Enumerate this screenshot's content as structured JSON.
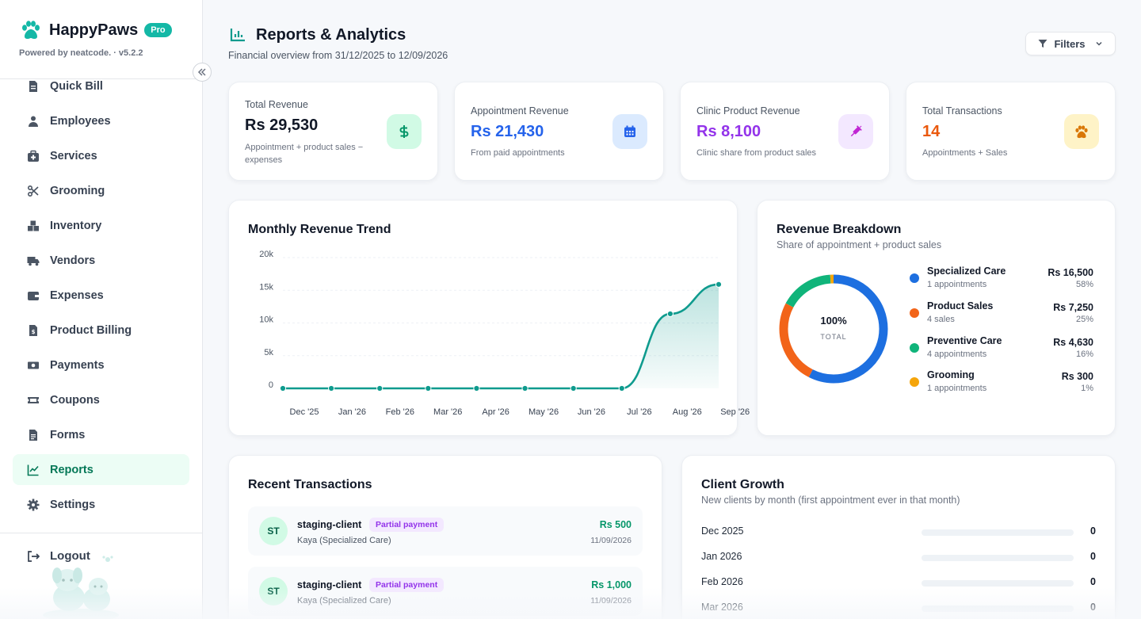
{
  "brand": {
    "name": "HappyPaws",
    "badge": "Pro",
    "powered_by": "Powered by neatcode. · v5.2.2"
  },
  "nav": [
    {
      "label": "Quick Bill",
      "icon": "receipt-icon"
    },
    {
      "label": "Employees",
      "icon": "user-icon"
    },
    {
      "label": "Services",
      "icon": "medical-kit-icon"
    },
    {
      "label": "Grooming",
      "icon": "scissors-icon"
    },
    {
      "label": "Inventory",
      "icon": "boxes-icon"
    },
    {
      "label": "Vendors",
      "icon": "truck-icon"
    },
    {
      "label": "Expenses",
      "icon": "wallet-icon"
    },
    {
      "label": "Product Billing",
      "icon": "invoice-icon"
    },
    {
      "label": "Payments",
      "icon": "money-icon"
    },
    {
      "label": "Coupons",
      "icon": "ticket-icon"
    },
    {
      "label": "Forms",
      "icon": "form-icon"
    },
    {
      "label": "Reports",
      "icon": "chart-line-icon",
      "active": true
    },
    {
      "label": "Settings",
      "icon": "gear-icon"
    }
  ],
  "logout_label": "Logout",
  "header": {
    "title": "Reports & Analytics",
    "subtitle": "Financial overview from 31/12/2025 to 12/09/2026",
    "filters_label": "Filters"
  },
  "stats": [
    {
      "label": "Total Revenue",
      "value": "Rs 29,530",
      "desc": "Appointment + product sales − expenses",
      "color": "#111827",
      "icon": "dollar-icon"
    },
    {
      "label": "Appointment Revenue",
      "value": "Rs 21,430",
      "desc": "From paid appointments",
      "color": "#2563eb",
      "icon": "calendar-icon"
    },
    {
      "label": "Clinic Product Revenue",
      "value": "Rs 8,100",
      "desc": "Clinic share from product sales",
      "color": "#9333ea",
      "icon": "syringe-icon"
    },
    {
      "label": "Total Transactions",
      "value": "14",
      "desc": "Appointments + Sales",
      "color": "#ea580c",
      "icon": "paw-icon"
    }
  ],
  "trend": {
    "title": "Monthly Revenue Trend"
  },
  "chart_data": {
    "type": "area",
    "title": "Monthly Revenue Trend",
    "x": [
      "Dec '25",
      "Jan '26",
      "Feb '26",
      "Mar '26",
      "Apr '26",
      "May '26",
      "Jun '26",
      "Jul '26",
      "Aug '26",
      "Sep '26"
    ],
    "values": [
      0,
      0,
      0,
      0,
      0,
      0,
      0,
      0,
      11400,
      15900
    ],
    "yticks": [
      "0",
      "5k",
      "10k",
      "15k",
      "20k"
    ],
    "ylim": [
      0,
      20000
    ],
    "grid": true,
    "color": "#0f9b8e"
  },
  "breakdown": {
    "title": "Revenue Breakdown",
    "subtitle": "Share of appointment + product sales",
    "center_value": "100%",
    "center_label": "TOTAL",
    "items": [
      {
        "name": "Specialized Care",
        "sub": "1 appointments",
        "value": "Rs 16,500",
        "pct": "58%",
        "share": 16500,
        "color": "#1d6fe0"
      },
      {
        "name": "Product Sales",
        "sub": "4 sales",
        "value": "Rs 7,250",
        "pct": "25%",
        "share": 7250,
        "color": "#f26419"
      },
      {
        "name": "Preventive Care",
        "sub": "4 appointments",
        "value": "Rs 4,630",
        "pct": "16%",
        "share": 4630,
        "color": "#10b47a"
      },
      {
        "name": "Grooming",
        "sub": "1 appointments",
        "value": "Rs 300",
        "pct": "1%",
        "share": 300,
        "color": "#f5a50b"
      }
    ]
  },
  "transactions": {
    "title": "Recent Transactions",
    "items": [
      {
        "initials": "ST",
        "name": "staging-client",
        "badge": "Partial payment",
        "sub": "Kaya (Specialized Care)",
        "amount": "Rs 500",
        "date": "11/09/2026"
      },
      {
        "initials": "ST",
        "name": "staging-client",
        "badge": "Partial payment",
        "sub": "Kaya (Specialized Care)",
        "amount": "Rs 1,000",
        "date": "11/09/2026"
      }
    ]
  },
  "growth": {
    "title": "Client Growth",
    "subtitle": "New clients by month (first appointment ever in that month)",
    "items": [
      {
        "label": "Dec 2025",
        "value": "0"
      },
      {
        "label": "Jan 2026",
        "value": "0"
      },
      {
        "label": "Feb 2026",
        "value": "0"
      },
      {
        "label": "Mar 2026",
        "value": "0"
      }
    ]
  }
}
